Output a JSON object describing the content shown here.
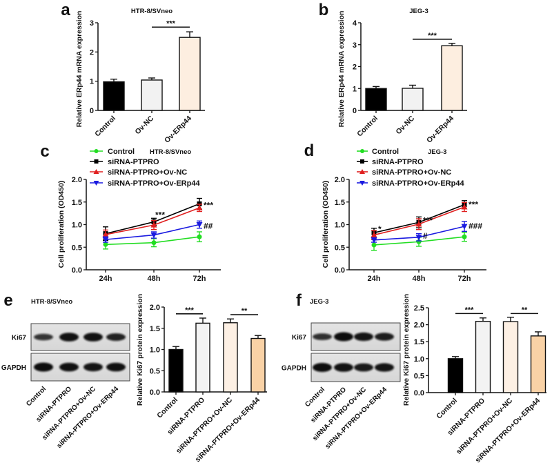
{
  "chart_data": [
    {
      "id": "a",
      "type": "bar",
      "panel_label": "a",
      "title": "HTR-8/SVneo",
      "ylabel": "Relative ERp44 mRNA expression",
      "categories": [
        "Control",
        "Ov-NC",
        "Ov-ERp44"
      ],
      "values": [
        0.98,
        1.04,
        2.5
      ],
      "errors": [
        0.09,
        0.07,
        0.19
      ],
      "colors": [
        "#000000",
        "#f2f2f2",
        "#fdeee0"
      ],
      "ylim": [
        0,
        3
      ],
      "yticks": [
        "0",
        "1",
        "2",
        "3"
      ],
      "significance": [
        {
          "from": 1,
          "to": 2,
          "y": 2.85,
          "label": "***"
        }
      ]
    },
    {
      "id": "b",
      "type": "bar",
      "panel_label": "b",
      "title": "JEG-3",
      "ylabel": "Relative ERp44 mRNA expression",
      "categories": [
        "Control",
        "Ov-NC",
        "Ov-ERp44"
      ],
      "values": [
        1.0,
        1.01,
        2.95
      ],
      "errors": [
        0.09,
        0.14,
        0.11
      ],
      "colors": [
        "#000000",
        "#f2f2f2",
        "#fdeee0"
      ],
      "ylim": [
        0,
        4
      ],
      "yticks": [
        "0",
        "1",
        "2",
        "3",
        "4"
      ],
      "significance": [
        {
          "from": 1,
          "to": 2,
          "y": 3.25,
          "label": "***"
        }
      ]
    },
    {
      "id": "c",
      "type": "line",
      "panel_label": "c",
      "title": "HTR-8/SVneo",
      "ylabel": "Cell proliferation (OD450)",
      "x": [
        "24h",
        "48h",
        "72h"
      ],
      "ylim": [
        0,
        2
      ],
      "yticks": [
        "0.0",
        "0.5",
        "1.0",
        "1.5",
        "2.0"
      ],
      "series": [
        {
          "name": "Control",
          "values": [
            0.56,
            0.6,
            0.73
          ],
          "errors": [
            0.1,
            0.09,
            0.11
          ],
          "color": "#22dd22",
          "marker": "circle"
        },
        {
          "name": "siRNA-PTPRO",
          "values": [
            0.8,
            1.06,
            1.46
          ],
          "errors": [
            0.15,
            0.08,
            0.12
          ],
          "color": "#000000",
          "marker": "square"
        },
        {
          "name": "siRNA-PTPRO+Ov-NC",
          "values": [
            0.78,
            0.99,
            1.37
          ],
          "errors": [
            0.1,
            0.1,
            0.08
          ],
          "color": "#e02020",
          "marker": "triangle-up"
        },
        {
          "name": "siRNA-PTPRO+Ov-ERp44",
          "values": [
            0.67,
            0.77,
            1.0
          ],
          "errors": [
            0.06,
            0.07,
            0.08
          ],
          "color": "#1a1ae0",
          "marker": "triangle-down"
        }
      ],
      "annotations": [
        {
          "text": "***",
          "x": 1,
          "y": 1.18,
          "pos": "above"
        },
        {
          "text": "***",
          "x": 2,
          "y": 1.46,
          "pos": "right"
        },
        {
          "text": "##",
          "x": 2,
          "y": 1.0,
          "pos": "right"
        }
      ]
    },
    {
      "id": "d",
      "type": "line",
      "panel_label": "d",
      "title": "JEG-3",
      "ylabel": "Cell proliferation (OD450)",
      "x": [
        "24h",
        "48h",
        "72h"
      ],
      "ylim": [
        0,
        2
      ],
      "yticks": [
        "0.0",
        "0.5",
        "1.0",
        "1.5",
        "2.0"
      ],
      "series": [
        {
          "name": "Control",
          "values": [
            0.55,
            0.62,
            0.73
          ],
          "errors": [
            0.12,
            0.1,
            0.1
          ],
          "color": "#22dd22",
          "marker": "circle"
        },
        {
          "name": "siRNA-PTPRO",
          "values": [
            0.82,
            1.05,
            1.44
          ],
          "errors": [
            0.1,
            0.12,
            0.09
          ],
          "color": "#000000",
          "marker": "square"
        },
        {
          "name": "siRNA-PTPRO+Ov-NC",
          "values": [
            0.77,
            1.01,
            1.39
          ],
          "errors": [
            0.1,
            0.12,
            0.1
          ],
          "color": "#e02020",
          "marker": "triangle-up"
        },
        {
          "name": "siRNA-PTPRO+Ov-ERp44",
          "values": [
            0.66,
            0.72,
            0.96
          ],
          "errors": [
            0.05,
            0.08,
            0.11
          ],
          "color": "#1a1ae0",
          "marker": "triangle-down"
        }
      ],
      "annotations": [
        {
          "text": "*",
          "x": 0,
          "y": 0.93,
          "pos": "right"
        },
        {
          "text": "***",
          "x": 1,
          "y": 1.12,
          "pos": "right"
        },
        {
          "text": "#",
          "x": 1,
          "y": 0.78,
          "pos": "right"
        },
        {
          "text": "***",
          "x": 2,
          "y": 1.47,
          "pos": "right"
        },
        {
          "text": "###",
          "x": 2,
          "y": 1.0,
          "pos": "right"
        }
      ]
    },
    {
      "id": "e",
      "type": "bar",
      "panel_label": "e",
      "title": "HTR-8/SVneo",
      "ylabel": "Relative Ki67 protein expression",
      "categories": [
        "Control",
        "siRNA-PTPRO",
        "siRNA-PTPRO+Ov-NC",
        "siRNA-PTPRO+Ov-ERp44"
      ],
      "values": [
        1.0,
        1.62,
        1.63,
        1.26
      ],
      "errors": [
        0.07,
        0.12,
        0.09,
        0.07
      ],
      "colors": [
        "#000000",
        "#f3f3f3",
        "#fdf0e4",
        "#f9d2a6"
      ],
      "ylim": [
        0,
        2
      ],
      "yticks": [
        "0.0",
        "0.5",
        "1.0",
        "1.5",
        "2.0"
      ],
      "significance": [
        {
          "from": 0,
          "to": 1,
          "y": 1.84,
          "label": "***"
        },
        {
          "from": 2,
          "to": 3,
          "y": 1.82,
          "label": "**"
        }
      ],
      "blot": {
        "rows": [
          {
            "label": "Ki67",
            "intensity": [
              0.55,
              0.95,
              0.95,
              0.75
            ]
          },
          {
            "label": "GAPDH",
            "intensity": [
              1,
              0.95,
              0.9,
              0.95
            ]
          }
        ],
        "lanes": [
          "Control",
          "siRNA-PTPRO",
          "siRNA-PTPRO+Ov-NC",
          "siRNA-PTPRO+Ov-ERp44"
        ]
      }
    },
    {
      "id": "f",
      "type": "bar",
      "panel_label": "f",
      "title": "JEG-3",
      "ylabel": "Relative Ki67 protein expression",
      "categories": [
        "Control",
        "siRNA-PTPRO",
        "siRNA-PTPRO+Ov-NC",
        "siRNA-PTPRO+Ov-ERp44"
      ],
      "values": [
        1.0,
        2.1,
        2.09,
        1.67
      ],
      "errors": [
        0.06,
        0.1,
        0.13,
        0.12
      ],
      "colors": [
        "#000000",
        "#f3f3f3",
        "#fdf0e4",
        "#f9d2a6"
      ],
      "ylim": [
        0,
        2.5
      ],
      "yticks": [
        "0.0",
        "0.5",
        "1.0",
        "1.5",
        "2.0",
        "2.5"
      ],
      "significance": [
        {
          "from": 0,
          "to": 1,
          "y": 2.33,
          "label": "***"
        },
        {
          "from": 2,
          "to": 3,
          "y": 2.33,
          "label": "**"
        }
      ],
      "blot": {
        "rows": [
          {
            "label": "Ki67",
            "intensity": [
              0.6,
              1,
              0.9,
              0.8
            ]
          },
          {
            "label": "GAPDH",
            "intensity": [
              1,
              0.95,
              0.85,
              0.9
            ]
          }
        ],
        "lanes": [
          "Control",
          "siRNA-PTPRO",
          "siRNA-PTPRO+Ov-NC",
          "siRNA-PTPRO+Ov-ERp44"
        ]
      }
    }
  ]
}
